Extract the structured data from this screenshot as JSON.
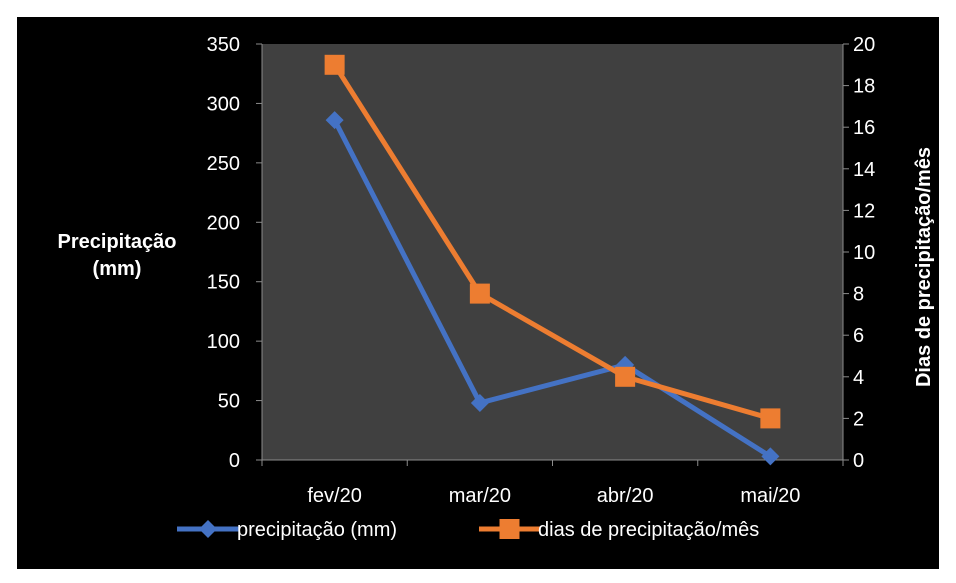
{
  "chart_data": {
    "type": "line",
    "title": "",
    "categories": [
      "fev/20",
      "mar/20",
      "abr/20",
      "mai/20"
    ],
    "y_left": {
      "label_line1": "Precipitação",
      "label_line2": "(mm)",
      "range": [
        0,
        350
      ],
      "ticks": [
        "0",
        "50",
        "100",
        "150",
        "200",
        "250",
        "300",
        "350"
      ]
    },
    "y_right": {
      "label": "Dias de precipitação/mês",
      "range": [
        0,
        20
      ],
      "ticks": [
        "0",
        "2",
        "4",
        "6",
        "8",
        "10",
        "12",
        "14",
        "16",
        "18",
        "20"
      ]
    },
    "series": [
      {
        "name": "precipitação (mm)",
        "axis": "left",
        "values": [
          286,
          48,
          80,
          3
        ],
        "color": "#4472C4",
        "marker": "diamond"
      },
      {
        "name": "dias de precipitação/mês",
        "axis": "right",
        "values": [
          19,
          8,
          4,
          2
        ],
        "color": "#ED7D31",
        "marker": "square"
      }
    ],
    "plot_background": "#404040",
    "background": "#000000",
    "grid": false,
    "legend_position": "bottom"
  }
}
